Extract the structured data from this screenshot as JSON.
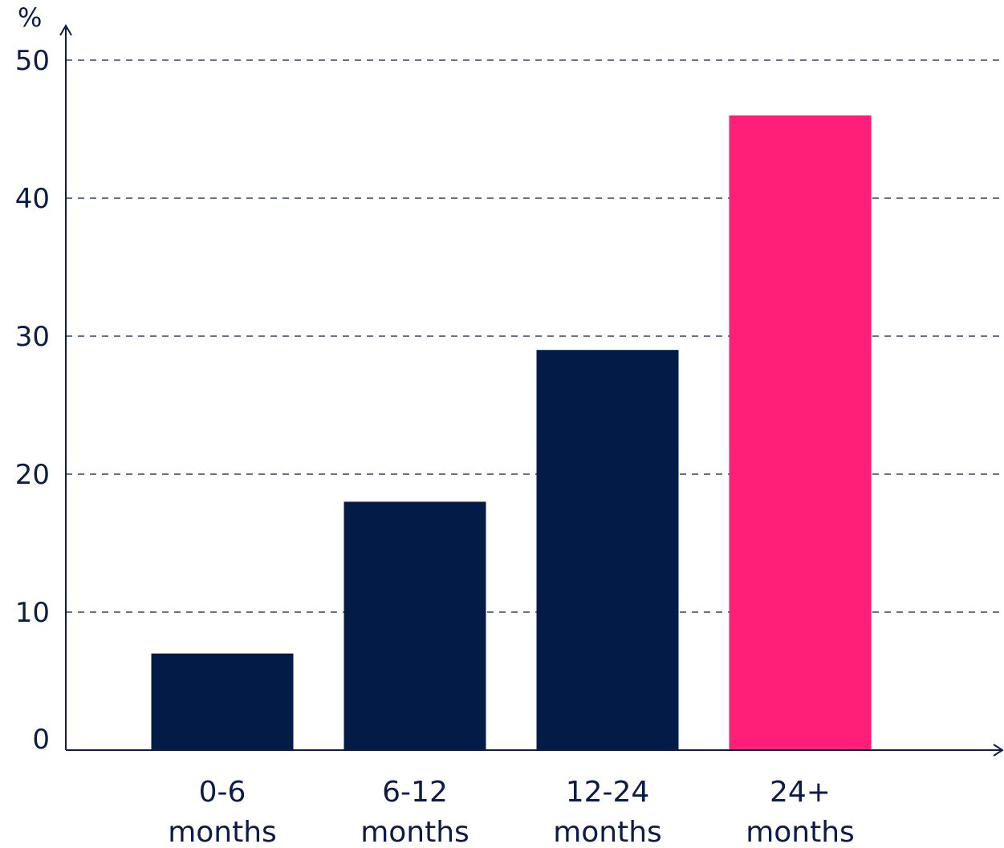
{
  "chart_data": {
    "type": "bar",
    "unit_label": "%",
    "categories": [
      [
        "0-6",
        "months"
      ],
      [
        "6-12",
        "months"
      ],
      [
        "12-24",
        "months"
      ],
      [
        "24+",
        "months"
      ]
    ],
    "values": [
      7,
      18,
      29,
      46
    ],
    "bar_colors": [
      "#031c47",
      "#031c47",
      "#031c47",
      "#ff1f79"
    ],
    "ylim": [
      0,
      50
    ],
    "yticks": [
      0,
      10,
      20,
      30,
      40,
      50
    ],
    "grid": true,
    "axis_color": "#0b1c48",
    "grid_color": "#0b1c48"
  }
}
